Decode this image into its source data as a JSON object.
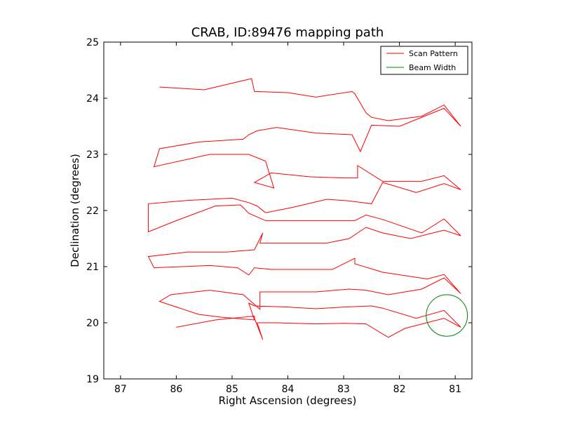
{
  "chart_data": {
    "type": "line",
    "title": "CRAB, ID:89476 mapping path",
    "xlabel": "Right Ascension (degrees)",
    "ylabel": "Declination (degrees)",
    "xlim": [
      87.3,
      80.7
    ],
    "ylim": [
      19,
      25
    ],
    "xticks": [
      87,
      86,
      85,
      84,
      83,
      82,
      81
    ],
    "yticks": [
      19,
      20,
      21,
      22,
      23,
      24,
      25
    ],
    "legend": {
      "position": "top-right",
      "entries": [
        {
          "label": "Scan Pattern",
          "color": "#ff0000"
        },
        {
          "label": "Beam Width",
          "color": "#008000"
        }
      ]
    },
    "series": [
      {
        "name": "Scan Pattern",
        "color": "#ff0000",
        "x": [
          86.0,
          85.3,
          84.6,
          84.6,
          84.45,
          84.55,
          84.2,
          83.5,
          83.0,
          82.6,
          82.2,
          81.9,
          81.2,
          80.9,
          81.2,
          81.7,
          82.3,
          82.5,
          83.0,
          83.5,
          84.0,
          84.6,
          84.7,
          84.6,
          85.2,
          85.6,
          86.3,
          86.1,
          85.4,
          84.8,
          84.5,
          84.5,
          84.0,
          83.5,
          82.9,
          82.6,
          82.2,
          81.6,
          81.2,
          80.9,
          81.2,
          81.5,
          82.3,
          82.8,
          82.8,
          83.2,
          83.8,
          84.3,
          84.6,
          84.7,
          84.9,
          85.4,
          86.4,
          86.5,
          85.8,
          85.1,
          84.6,
          84.45,
          84.5,
          84.0,
          83.3,
          82.9,
          82.6,
          82.3,
          81.8,
          81.2,
          80.9,
          81.2,
          81.6,
          82.3,
          82.6,
          82.8,
          83.3,
          83.8,
          84.4,
          84.7,
          84.85,
          85.3,
          86.0,
          86.5,
          86.5,
          85.8,
          85.0,
          84.7,
          84.55,
          84.4,
          83.9,
          83.3,
          82.9,
          82.5,
          82.3,
          81.7,
          81.2,
          80.9,
          81.2,
          81.6,
          82.3,
          82.75,
          82.75,
          83.0,
          83.6,
          84.3,
          84.6,
          84.25,
          84.4,
          84.7,
          85.4,
          86.4,
          86.3,
          85.6,
          84.8,
          84.7,
          84.55,
          84.2,
          83.5,
          82.85,
          82.7,
          82.5,
          82.0,
          81.2,
          80.9,
          81.2,
          81.6,
          82.2,
          82.5,
          82.6,
          82.8,
          82.85,
          83.5,
          84.0,
          84.6,
          84.65,
          85.5,
          86.3
        ],
        "y": [
          19.92,
          20.05,
          20.12,
          20.08,
          19.7,
          20.0,
          20.0,
          19.98,
          19.99,
          19.98,
          19.74,
          19.9,
          20.08,
          19.92,
          20.22,
          20.08,
          20.26,
          20.3,
          20.28,
          20.25,
          20.28,
          20.3,
          20.35,
          20.05,
          20.1,
          20.15,
          20.38,
          20.5,
          20.58,
          20.5,
          20.24,
          20.55,
          20.55,
          20.55,
          20.6,
          20.58,
          20.5,
          20.6,
          20.8,
          20.52,
          20.86,
          20.78,
          20.9,
          21.05,
          21.15,
          20.95,
          20.95,
          20.95,
          20.98,
          20.85,
          20.98,
          21.02,
          20.98,
          21.18,
          21.26,
          21.26,
          21.3,
          21.6,
          21.42,
          21.42,
          21.42,
          21.5,
          21.7,
          21.6,
          21.5,
          21.65,
          21.55,
          21.85,
          21.6,
          21.84,
          21.92,
          21.82,
          21.82,
          21.82,
          21.82,
          21.95,
          22.1,
          22.08,
          21.82,
          21.62,
          22.12,
          22.18,
          22.22,
          22.14,
          22.08,
          21.96,
          22.06,
          22.2,
          22.17,
          22.12,
          22.5,
          22.32,
          22.48,
          22.37,
          22.62,
          22.52,
          22.52,
          22.8,
          22.58,
          22.58,
          22.6,
          22.67,
          22.5,
          22.4,
          22.88,
          23.0,
          23.0,
          22.78,
          23.1,
          23.22,
          23.27,
          23.35,
          23.42,
          23.48,
          23.38,
          23.35,
          23.05,
          23.52,
          23.5,
          23.82,
          23.5,
          23.88,
          23.68,
          23.6,
          23.66,
          23.74,
          24.08,
          24.12,
          24.02,
          24.1,
          24.12,
          24.35,
          24.15,
          24.2
        ]
      },
      {
        "name": "Beam Width",
        "color": "#008000",
        "center": [
          81.15,
          20.13
        ],
        "radius": 0.37
      }
    ]
  }
}
